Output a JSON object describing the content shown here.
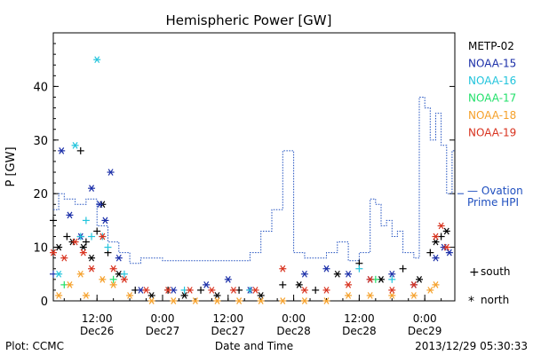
{
  "chart_data": {
    "type": "scatter",
    "title": "Hemispheric Power [GW]",
    "ylabel": "P [GW]",
    "xlabel": "Date and Time",
    "ylim": [
      0,
      50
    ],
    "xlim": [
      "2013-12-26 04:00",
      "2013-12-29 05:30"
    ],
    "y_ticks": [
      0,
      10,
      20,
      30,
      40
    ],
    "x_ticks": [
      {
        "t": "2013-12-26 12:00",
        "line1": "12:00",
        "line2": "Dec26"
      },
      {
        "t": "2013-12-27 00:00",
        "line1": "0:00",
        "line2": "Dec27"
      },
      {
        "t": "2013-12-27 12:00",
        "line1": "12:00",
        "line2": "Dec27"
      },
      {
        "t": "2013-12-28 00:00",
        "line1": "0:00",
        "line2": "Dec28"
      },
      {
        "t": "2013-12-28 12:00",
        "line1": "12:00",
        "line2": "Dec28"
      },
      {
        "t": "2013-12-29 00:00",
        "line1": "0:00",
        "line2": "Dec29"
      }
    ],
    "grid": false,
    "legend_position": "right",
    "marker_legend": [
      {
        "marker": "+",
        "label": "south"
      },
      {
        "marker": "*",
        "label": "north"
      }
    ],
    "ovation_label": [
      "— Ovation",
      "Prime HPI"
    ],
    "ovation_color": "#1f4fbf",
    "series": [
      {
        "name": "METP-02",
        "color": "#000000",
        "points": [
          [
            "2013-12-26 04:00",
            15,
            "+"
          ],
          [
            "2013-12-26 05:00",
            10,
            "*"
          ],
          [
            "2013-12-26 06:30",
            12,
            "+"
          ],
          [
            "2013-12-26 07:30",
            11,
            "*"
          ],
          [
            "2013-12-26 09:00",
            28,
            "+"
          ],
          [
            "2013-12-26 09:30",
            10,
            "*"
          ],
          [
            "2013-12-26 10:00",
            11,
            "+"
          ],
          [
            "2013-12-26 11:00",
            8,
            "*"
          ],
          [
            "2013-12-26 12:00",
            13,
            "+"
          ],
          [
            "2013-12-26 13:00",
            18,
            "*"
          ],
          [
            "2013-12-26 14:00",
            9,
            "+"
          ],
          [
            "2013-12-26 16:00",
            5,
            "*"
          ],
          [
            "2013-12-26 19:00",
            2,
            "+"
          ],
          [
            "2013-12-26 22:00",
            1,
            "*"
          ],
          [
            "2013-12-27 01:00",
            2,
            "+"
          ],
          [
            "2013-12-27 04:00",
            1,
            "*"
          ],
          [
            "2013-12-27 07:00",
            2,
            "+"
          ],
          [
            "2013-12-27 10:00",
            1,
            "*"
          ],
          [
            "2013-12-27 14:00",
            2,
            "+"
          ],
          [
            "2013-12-27 18:00",
            1,
            "*"
          ],
          [
            "2013-12-27 22:00",
            3,
            "+"
          ],
          [
            "2013-12-28 01:00",
            3,
            "*"
          ],
          [
            "2013-12-28 04:00",
            2,
            "+"
          ],
          [
            "2013-12-28 08:00",
            5,
            "*"
          ],
          [
            "2013-12-28 12:00",
            7,
            "+"
          ],
          [
            "2013-12-28 16:00",
            4,
            "*"
          ],
          [
            "2013-12-28 20:00",
            6,
            "+"
          ],
          [
            "2013-12-28 23:00",
            4,
            "*"
          ],
          [
            "2013-12-29 01:00",
            9,
            "+"
          ],
          [
            "2013-12-29 02:00",
            11,
            "*"
          ],
          [
            "2013-12-29 03:00",
            12,
            "+"
          ],
          [
            "2013-12-29 04:00",
            13,
            "*"
          ]
        ]
      },
      {
        "name": "NOAA-15",
        "color": "#1a2ea8",
        "points": [
          [
            "2013-12-26 04:00",
            5,
            "+"
          ],
          [
            "2013-12-26 05:30",
            28,
            "*"
          ],
          [
            "2013-12-26 07:00",
            16,
            "*"
          ],
          [
            "2013-12-26 09:00",
            12,
            "*"
          ],
          [
            "2013-12-26 11:00",
            21,
            "*"
          ],
          [
            "2013-12-26 12:30",
            18,
            "*"
          ],
          [
            "2013-12-26 13:30",
            15,
            "*"
          ],
          [
            "2013-12-26 14:30",
            24,
            "*"
          ],
          [
            "2013-12-26 16:00",
            8,
            "*"
          ],
          [
            "2013-12-26 20:00",
            2,
            "*"
          ],
          [
            "2013-12-27 02:00",
            2,
            "*"
          ],
          [
            "2013-12-27 08:00",
            3,
            "*"
          ],
          [
            "2013-12-27 12:00",
            4,
            "*"
          ],
          [
            "2013-12-27 16:00",
            2,
            "*"
          ],
          [
            "2013-12-28 02:00",
            5,
            "*"
          ],
          [
            "2013-12-28 06:00",
            6,
            "*"
          ],
          [
            "2013-12-28 10:00",
            5,
            "*"
          ],
          [
            "2013-12-28 14:00",
            4,
            "*"
          ],
          [
            "2013-12-28 18:00",
            5,
            "*"
          ],
          [
            "2013-12-28 22:00",
            3,
            "*"
          ],
          [
            "2013-12-29 02:00",
            8,
            "*"
          ],
          [
            "2013-12-29 03:30",
            10,
            "*"
          ],
          [
            "2013-12-29 04:30",
            9,
            "*"
          ]
        ]
      },
      {
        "name": "NOAA-16",
        "color": "#22c4dc",
        "points": [
          [
            "2013-12-26 05:00",
            5,
            "*"
          ],
          [
            "2013-12-26 08:00",
            29,
            "*"
          ],
          [
            "2013-12-26 09:00",
            12,
            "+"
          ],
          [
            "2013-12-26 10:00",
            15,
            "+"
          ],
          [
            "2013-12-26 11:00",
            12,
            "+"
          ],
          [
            "2013-12-26 12:00",
            45,
            "*"
          ],
          [
            "2013-12-26 13:00",
            12,
            "+"
          ],
          [
            "2013-12-26 14:00",
            10,
            "+"
          ],
          [
            "2013-12-26 17:00",
            5,
            "+"
          ],
          [
            "2013-12-27 04:00",
            2,
            "+"
          ],
          [
            "2013-12-27 16:00",
            2,
            "+"
          ],
          [
            "2013-12-28 12:00",
            6,
            "+"
          ],
          [
            "2013-12-28 18:00",
            4,
            "+"
          ]
        ]
      },
      {
        "name": "NOAA-17",
        "color": "#22e06a",
        "points": [
          [
            "2013-12-26 06:00",
            3,
            "+"
          ],
          [
            "2013-12-26 15:00",
            4,
            "+"
          ],
          [
            "2013-12-28 15:00",
            4,
            "+"
          ]
        ]
      },
      {
        "name": "NOAA-18",
        "color": "#f5a02a",
        "points": [
          [
            "2013-12-26 05:00",
            1,
            "*"
          ],
          [
            "2013-12-26 07:00",
            3,
            "*"
          ],
          [
            "2013-12-26 09:00",
            5,
            "*"
          ],
          [
            "2013-12-26 10:00",
            1,
            "*"
          ],
          [
            "2013-12-26 13:00",
            4,
            "*"
          ],
          [
            "2013-12-26 15:00",
            3,
            "*"
          ],
          [
            "2013-12-26 18:00",
            1,
            "*"
          ],
          [
            "2013-12-26 22:00",
            0,
            "*"
          ],
          [
            "2013-12-27 02:00",
            0,
            "*"
          ],
          [
            "2013-12-27 06:00",
            0,
            "*"
          ],
          [
            "2013-12-27 10:00",
            0,
            "*"
          ],
          [
            "2013-12-27 14:00",
            0,
            "*"
          ],
          [
            "2013-12-27 18:00",
            0,
            "*"
          ],
          [
            "2013-12-27 22:00",
            0,
            "*"
          ],
          [
            "2013-12-28 02:00",
            0,
            "*"
          ],
          [
            "2013-12-28 06:00",
            0,
            "*"
          ],
          [
            "2013-12-28 10:00",
            1,
            "*"
          ],
          [
            "2013-12-28 14:00",
            1,
            "*"
          ],
          [
            "2013-12-28 18:00",
            1,
            "*"
          ],
          [
            "2013-12-28 22:00",
            1,
            "*"
          ],
          [
            "2013-12-29 01:00",
            2,
            "*"
          ],
          [
            "2013-12-29 02:00",
            3,
            "*"
          ]
        ]
      },
      {
        "name": "NOAA-19",
        "color": "#d8321e",
        "points": [
          [
            "2013-12-26 04:00",
            9,
            "*"
          ],
          [
            "2013-12-26 06:00",
            8,
            "*"
          ],
          [
            "2013-12-26 08:00",
            11,
            "*"
          ],
          [
            "2013-12-26 09:30",
            9,
            "*"
          ],
          [
            "2013-12-26 11:00",
            6,
            "*"
          ],
          [
            "2013-12-26 13:00",
            12,
            "*"
          ],
          [
            "2013-12-26 15:00",
            6,
            "*"
          ],
          [
            "2013-12-26 17:00",
            4,
            "*"
          ],
          [
            "2013-12-26 21:00",
            2,
            "*"
          ],
          [
            "2013-12-27 01:00",
            2,
            "*"
          ],
          [
            "2013-12-27 05:00",
            2,
            "*"
          ],
          [
            "2013-12-27 09:00",
            2,
            "*"
          ],
          [
            "2013-12-27 13:00",
            2,
            "*"
          ],
          [
            "2013-12-27 17:00",
            2,
            "*"
          ],
          [
            "2013-12-27 22:00",
            6,
            "*"
          ],
          [
            "2013-12-28 02:00",
            2,
            "*"
          ],
          [
            "2013-12-28 06:00",
            2,
            "*"
          ],
          [
            "2013-12-28 10:00",
            3,
            "*"
          ],
          [
            "2013-12-28 14:00",
            4,
            "*"
          ],
          [
            "2013-12-28 18:00",
            2,
            "*"
          ],
          [
            "2013-12-28 22:00",
            3,
            "*"
          ],
          [
            "2013-12-29 02:00",
            12,
            "*"
          ],
          [
            "2013-12-29 03:00",
            14,
            "*"
          ],
          [
            "2013-12-29 04:00",
            10,
            "*"
          ]
        ]
      }
    ],
    "ovation_hpi": [
      [
        "2013-12-26 04:00",
        17
      ],
      [
        "2013-12-26 05:00",
        20
      ],
      [
        "2013-12-26 06:00",
        19
      ],
      [
        "2013-12-26 08:00",
        18
      ],
      [
        "2013-12-26 10:00",
        19
      ],
      [
        "2013-12-26 12:00",
        14
      ],
      [
        "2013-12-26 14:00",
        11
      ],
      [
        "2013-12-26 16:00",
        9
      ],
      [
        "2013-12-26 18:00",
        7
      ],
      [
        "2013-12-26 20:00",
        8
      ],
      [
        "2013-12-27 00:00",
        7.5
      ],
      [
        "2013-12-27 10:00",
        7.5
      ],
      [
        "2013-12-27 16:00",
        9
      ],
      [
        "2013-12-27 18:00",
        13
      ],
      [
        "2013-12-27 20:00",
        17
      ],
      [
        "2013-12-27 22:00",
        28
      ],
      [
        "2013-12-28 00:00",
        9
      ],
      [
        "2013-12-28 02:00",
        8
      ],
      [
        "2013-12-28 06:00",
        9
      ],
      [
        "2013-12-28 08:00",
        11
      ],
      [
        "2013-12-28 10:00",
        7.5
      ],
      [
        "2013-12-28 12:00",
        9
      ],
      [
        "2013-12-28 14:00",
        19
      ],
      [
        "2013-12-28 15:00",
        18
      ],
      [
        "2013-12-28 16:00",
        14
      ],
      [
        "2013-12-28 17:00",
        15
      ],
      [
        "2013-12-28 18:00",
        12
      ],
      [
        "2013-12-28 19:00",
        13
      ],
      [
        "2013-12-28 20:00",
        9
      ],
      [
        "2013-12-28 22:00",
        8
      ],
      [
        "2013-12-28 23:00",
        38
      ],
      [
        "2013-12-29 00:00",
        36
      ],
      [
        "2013-12-29 01:00",
        30
      ],
      [
        "2013-12-29 02:00",
        35
      ],
      [
        "2013-12-29 03:00",
        29
      ],
      [
        "2013-12-29 04:00",
        20
      ],
      [
        "2013-12-29 05:00",
        28
      ]
    ]
  },
  "footer": {
    "left": "Plot: CCMC",
    "right": "2013/12/29 05:30:33"
  }
}
